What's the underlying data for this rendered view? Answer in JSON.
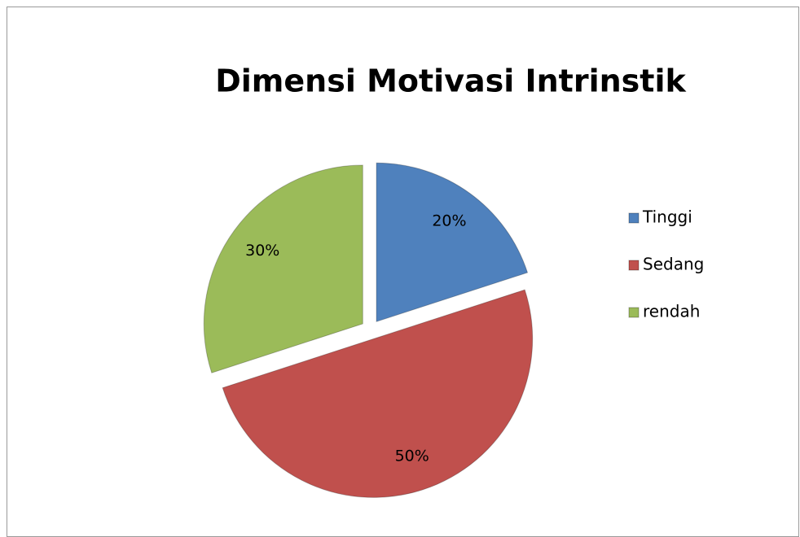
{
  "chart_data": {
    "type": "pie",
    "title": "Dimensi Motivasi Intrinstik",
    "categories": [
      "Tinggi",
      "Sedang",
      "rendah"
    ],
    "values": [
      20,
      50,
      30
    ],
    "value_labels": [
      "20%",
      "50%",
      "30%"
    ],
    "colors": [
      "#4f81bd",
      "#c0504d",
      "#9bbb59"
    ],
    "legend": "right"
  }
}
